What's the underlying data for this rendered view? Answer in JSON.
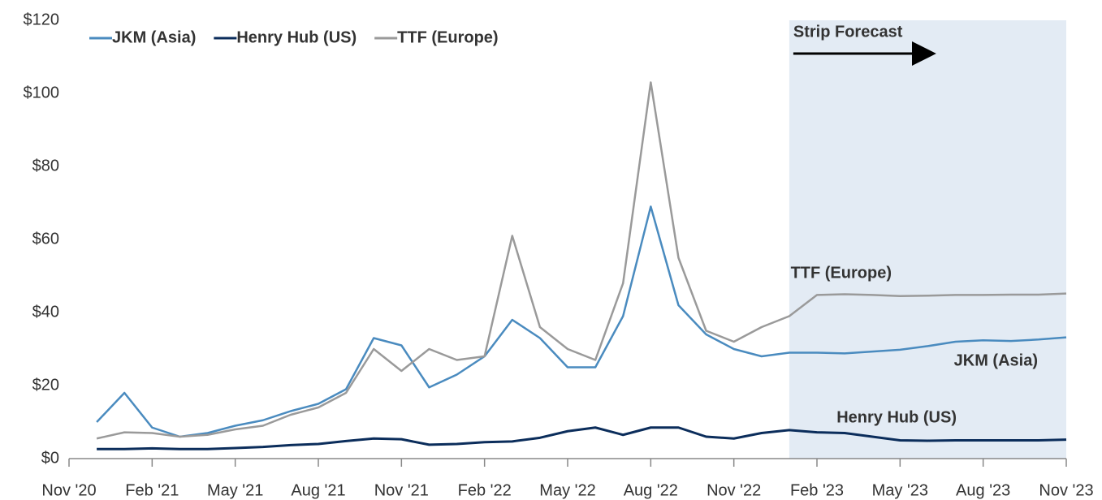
{
  "chart_data": {
    "type": "line",
    "x": [
      "2020-12",
      "2021-01",
      "2021-02",
      "2021-03",
      "2021-04",
      "2021-05",
      "2021-06",
      "2021-07",
      "2021-08",
      "2021-09",
      "2021-10",
      "2021-11",
      "2021-12",
      "2022-01",
      "2022-02",
      "2022-03",
      "2022-04",
      "2022-05",
      "2022-06",
      "2022-07",
      "2022-08",
      "2022-09",
      "2022-10",
      "2022-11",
      "2022-12",
      "2023-01",
      "2023-02",
      "2023-03",
      "2023-04",
      "2023-05",
      "2023-06",
      "2023-07",
      "2023-08",
      "2023-09",
      "2023-10",
      "2023-11"
    ],
    "series": [
      {
        "name": "JKM (Asia)",
        "color": "#4a8bbf",
        "values": [
          10,
          18,
          8.5,
          6,
          7,
          9,
          10.5,
          13,
          15,
          19,
          33,
          31,
          19.5,
          23,
          28,
          38,
          33,
          25,
          25,
          39,
          69,
          42,
          34,
          30,
          28,
          29,
          29,
          28.8,
          29.3,
          29.8,
          30.8,
          32,
          32.4,
          32.2,
          32.6,
          33.2
        ]
      },
      {
        "name": "Henry Hub (US)",
        "color": "#0b2d5b",
        "values": [
          2.6,
          2.6,
          2.8,
          2.6,
          2.6,
          2.9,
          3.2,
          3.7,
          4,
          4.8,
          5.5,
          5.3,
          3.8,
          4,
          4.5,
          4.7,
          5.7,
          7.5,
          8.5,
          6.5,
          8.5,
          8.5,
          6,
          5.5,
          7,
          7.8,
          7.2,
          7,
          6,
          5,
          4.9,
          5,
          5,
          5,
          5,
          5.2
        ]
      },
      {
        "name": "TTF (Europe)",
        "color": "#9a9a9a",
        "values": [
          5.5,
          7.2,
          7,
          6,
          6.5,
          8,
          9,
          12,
          14,
          18,
          30,
          24,
          30,
          27,
          28,
          61,
          36,
          30,
          27,
          48,
          103,
          55,
          35,
          32,
          36,
          39,
          44.8,
          45,
          44.8,
          44.5,
          44.6,
          44.8,
          44.8,
          44.9,
          44.9,
          45.2
        ]
      }
    ],
    "annotation": "Strip Forecast",
    "forecast_start": "2023-01",
    "xlim": [
      "2020-11",
      "2023-11"
    ],
    "xticks": [
      {
        "value": "2020-11",
        "label": "Nov '20"
      },
      {
        "value": "2021-02",
        "label": "Feb '21"
      },
      {
        "value": "2021-05",
        "label": "May '21"
      },
      {
        "value": "2021-08",
        "label": "Aug '21"
      },
      {
        "value": "2021-11",
        "label": "Nov '21"
      },
      {
        "value": "2022-02",
        "label": "Feb '22"
      },
      {
        "value": "2022-05",
        "label": "May '22"
      },
      {
        "value": "2022-08",
        "label": "Aug '22"
      },
      {
        "value": "2022-11",
        "label": "Nov '22"
      },
      {
        "value": "2023-02",
        "label": "Feb '23"
      },
      {
        "value": "2023-05",
        "label": "May '23"
      },
      {
        "value": "2023-08",
        "label": "Aug '23"
      },
      {
        "value": "2023-11",
        "label": "Nov '23"
      }
    ],
    "ylim": [
      0,
      120
    ],
    "yticks": [
      {
        "value": 0,
        "label": "$0"
      },
      {
        "value": 20,
        "label": "$20"
      },
      {
        "value": 40,
        "label": "$40"
      },
      {
        "value": 60,
        "label": "$60"
      },
      {
        "value": 80,
        "label": "$80"
      },
      {
        "value": 100,
        "label": "$100"
      },
      {
        "value": 120,
        "label": "$120"
      }
    ]
  }
}
